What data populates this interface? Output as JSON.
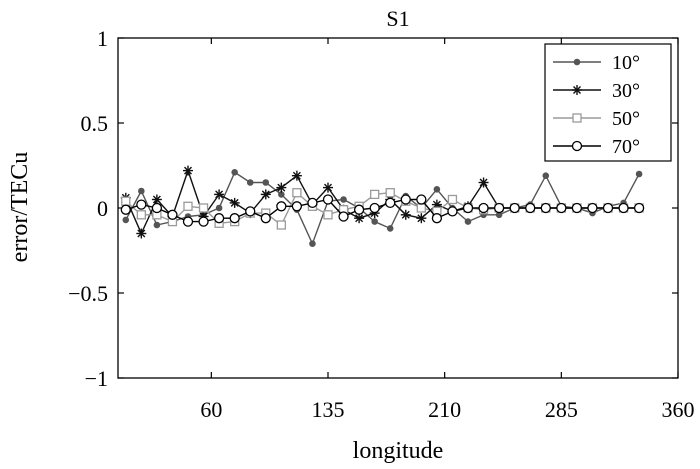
{
  "chart_data": {
    "type": "line",
    "title": "S1",
    "xlabel": "longitude",
    "ylabel": "error/TECu",
    "xlim": [
      0,
      360
    ],
    "ylim": [
      -1,
      1
    ],
    "xticks": [
      60,
      135,
      210,
      285,
      360
    ],
    "xtick_labels": [
      "60",
      "135",
      "210",
      "285",
      "360"
    ],
    "yticks": [
      1,
      0.5,
      0,
      -0.5,
      -1
    ],
    "ytick_labels": [
      "1",
      "0.5",
      "0",
      "−0.5",
      "−1"
    ],
    "grid": false,
    "legend_position": "top-right",
    "x": [
      5,
      15,
      25,
      35,
      45,
      55,
      65,
      75,
      85,
      95,
      105,
      115,
      125,
      135,
      145,
      155,
      165,
      175,
      185,
      195,
      205,
      215,
      225,
      235,
      245,
      255,
      265,
      275,
      285,
      295,
      305,
      315,
      325,
      335
    ],
    "series": [
      {
        "name": "10°",
        "color": "#555555",
        "marker": "dot",
        "values": [
          -0.07,
          0.1,
          -0.1,
          -0.08,
          -0.05,
          -0.04,
          0.0,
          0.21,
          0.15,
          0.15,
          0.08,
          -0.01,
          -0.21,
          0.04,
          0.05,
          0.0,
          -0.08,
          -0.12,
          0.07,
          0.0,
          0.11,
          0.0,
          -0.08,
          -0.04,
          -0.04,
          0.0,
          0.02,
          0.19,
          0.01,
          0.0,
          -0.03,
          0.01,
          0.03,
          0.2
        ]
      },
      {
        "name": "30°",
        "color": "#111111",
        "marker": "star",
        "values": [
          0.06,
          -0.15,
          0.05,
          -0.05,
          0.22,
          -0.05,
          0.08,
          0.03,
          -0.03,
          0.08,
          0.12,
          0.19,
          0.02,
          0.12,
          -0.01,
          -0.06,
          -0.03,
          0.05,
          -0.04,
          -0.06,
          0.02,
          -0.02,
          0.01,
          0.15,
          0.0,
          0.0,
          0.0,
          0.0,
          0.0,
          0.0,
          0.0,
          0.0,
          0.0,
          0.0
        ]
      },
      {
        "name": "50°",
        "color": "#9a9a9a",
        "marker": "square",
        "values": [
          0.04,
          -0.04,
          -0.04,
          -0.08,
          0.01,
          0.0,
          -0.09,
          -0.08,
          -0.03,
          -0.03,
          -0.1,
          0.09,
          0.01,
          -0.04,
          -0.01,
          0.01,
          0.08,
          0.09,
          0.04,
          0.0,
          -0.02,
          0.05,
          0.0,
          -0.01,
          0.0,
          0.0,
          0.0,
          0.0,
          0.0,
          0.0,
          0.0,
          0.0,
          0.0,
          0.0
        ]
      },
      {
        "name": "70°",
        "color": "#000000",
        "marker": "circle",
        "values": [
          -0.01,
          0.02,
          0.0,
          -0.04,
          -0.08,
          -0.08,
          -0.06,
          -0.06,
          -0.02,
          -0.06,
          0.01,
          0.01,
          0.03,
          0.05,
          -0.05,
          -0.01,
          0.0,
          0.03,
          0.05,
          0.05,
          -0.06,
          -0.02,
          0.0,
          0.0,
          0.0,
          0.0,
          0.0,
          0.0,
          0.0,
          0.0,
          0.0,
          0.0,
          0.0,
          0.0
        ]
      }
    ]
  }
}
